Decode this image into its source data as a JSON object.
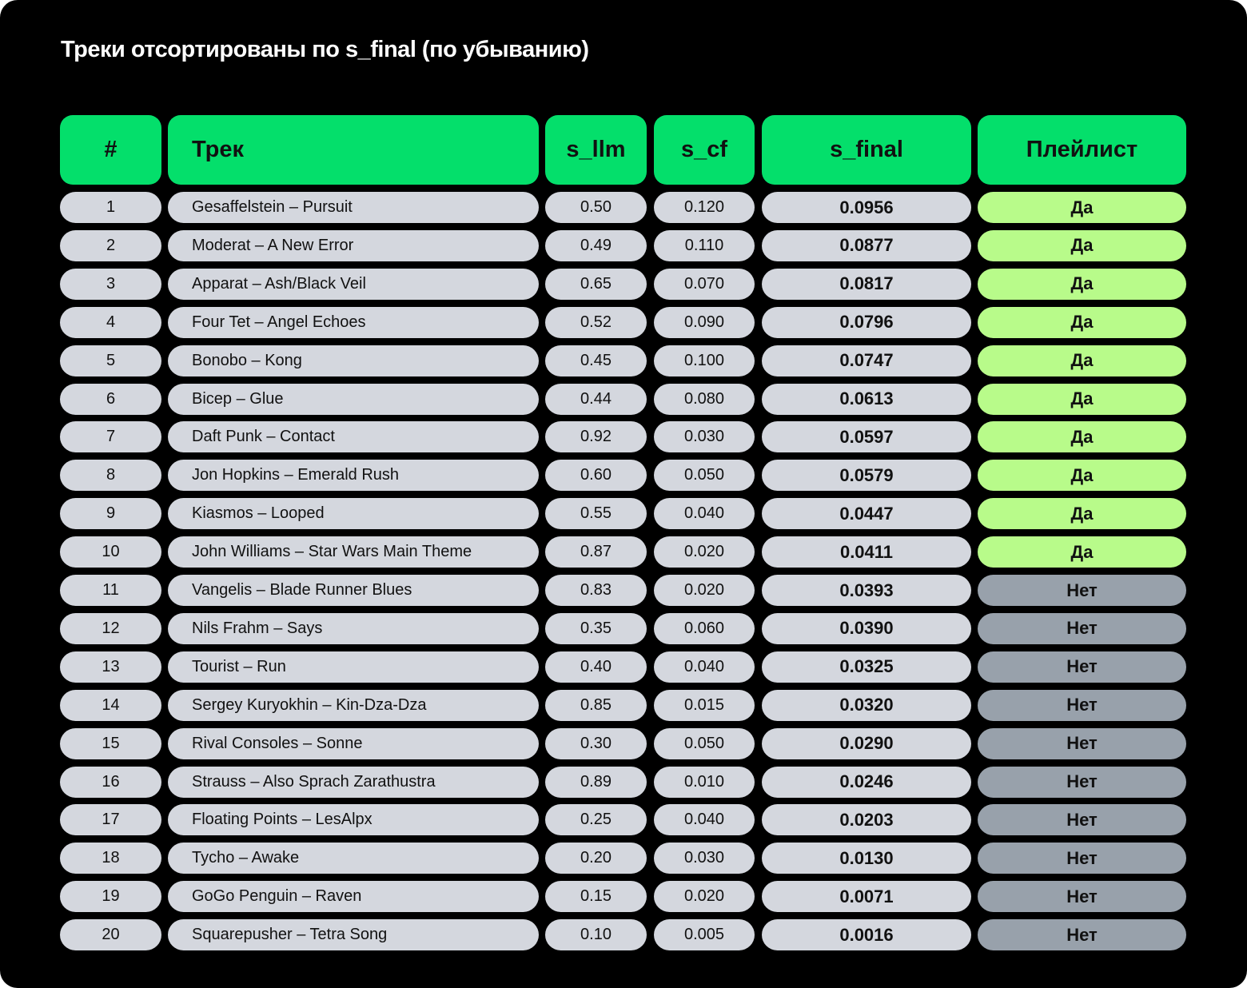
{
  "header": {
    "title": "Треки отсортированы по s_final (по убыванию)"
  },
  "table": {
    "columns": [
      "#",
      "Трек",
      "s_llm",
      "s_cf",
      "s_final",
      "Плейлист"
    ],
    "rows": [
      [
        "1",
        "Gesaffelstein – Pursuit",
        "0.50",
        "0.120",
        "0.0956",
        "Да"
      ],
      [
        "2",
        "Moderat – A New Error",
        "0.49",
        "0.110",
        "0.0877",
        "Да"
      ],
      [
        "3",
        "Apparat – Ash/Black Veil",
        "0.65",
        "0.070",
        "0.0817",
        "Да"
      ],
      [
        "4",
        "Four Tet – Angel Echoes",
        "0.52",
        "0.090",
        "0.0796",
        "Да"
      ],
      [
        "5",
        "Bonobo – Kong",
        "0.45",
        "0.100",
        "0.0747",
        "Да"
      ],
      [
        "6",
        "Bicep – Glue",
        "0.44",
        "0.080",
        "0.0613",
        "Да"
      ],
      [
        "7",
        "Daft Punk – Contact",
        "0.92",
        "0.030",
        "0.0597",
        "Да"
      ],
      [
        "8",
        "Jon Hopkins – Emerald Rush",
        "0.60",
        "0.050",
        "0.0579",
        "Да"
      ],
      [
        "9",
        "Kiasmos – Looped",
        "0.55",
        "0.040",
        "0.0447",
        "Да"
      ],
      [
        "10",
        "John Williams – Star Wars Main Theme",
        "0.87",
        "0.020",
        "0.0411",
        "Да"
      ],
      [
        "11",
        "Vangelis – Blade Runner Blues",
        "0.83",
        "0.020",
        "0.0393",
        "Нет"
      ],
      [
        "12",
        "Nils Frahm – Says",
        "0.35",
        "0.060",
        "0.0390",
        "Нет"
      ],
      [
        "13",
        "Tourist – Run",
        "0.40",
        "0.040",
        "0.0325",
        "Нет"
      ],
      [
        "14",
        "Sergey Kuryokhin – Kin-Dza-Dza",
        "0.85",
        "0.015",
        "0.0320",
        "Нет"
      ],
      [
        "15",
        "Rival Consoles – Sonne",
        "0.30",
        "0.050",
        "0.0290",
        "Нет"
      ],
      [
        "16",
        "Strauss – Also Sprach Zarathustra",
        "0.89",
        "0.010",
        "0.0246",
        "Нет"
      ],
      [
        "17",
        "Floating Points – LesAlpx",
        "0.25",
        "0.040",
        "0.0203",
        "Нет"
      ],
      [
        "18",
        "Tycho – Awake",
        "0.20",
        "0.030",
        "0.0130",
        "Нет"
      ],
      [
        "19",
        "GoGo Penguin – Raven",
        "0.15",
        "0.020",
        "0.0071",
        "Нет"
      ],
      [
        "20",
        "Squarepusher – Tetra Song",
        "0.10",
        "0.005",
        "0.0016",
        "Нет"
      ]
    ]
  }
}
